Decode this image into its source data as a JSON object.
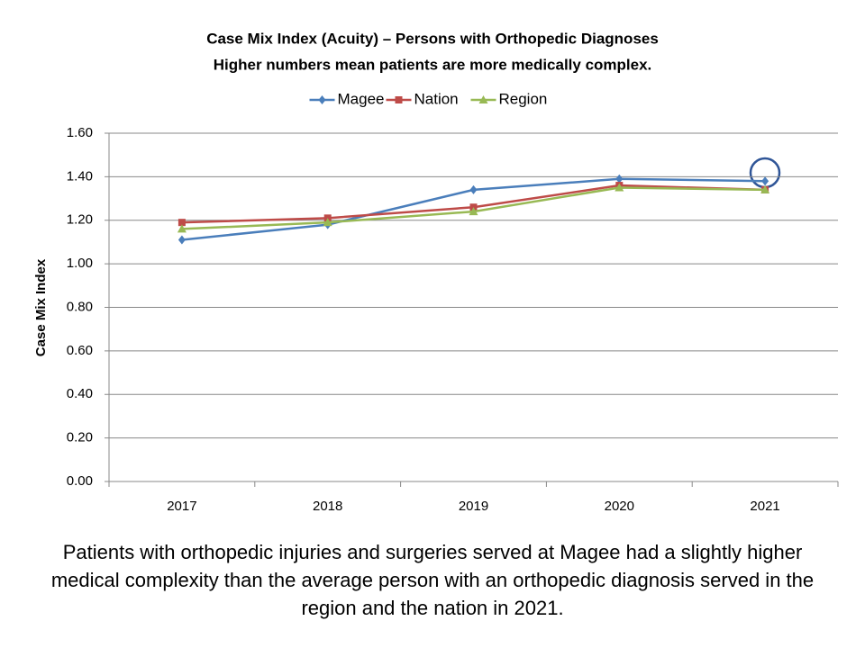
{
  "chart_data": {
    "type": "line",
    "title": "Case Mix Index (Acuity) – Persons with Orthopedic Diagnoses",
    "subtitle": "Higher numbers mean patients are more medically complex.",
    "y_label": "Case Mix Index",
    "categories": [
      "2017",
      "2018",
      "2019",
      "2020",
      "2021"
    ],
    "series": [
      {
        "name": "Magee",
        "color": "#4a7ebb",
        "values": [
          1.11,
          1.18,
          1.34,
          1.39,
          1.38
        ]
      },
      {
        "name": "Nation",
        "color": "#be4b48",
        "values": [
          1.19,
          1.21,
          1.26,
          1.36,
          1.34
        ]
      },
      {
        "name": "Region",
        "color": "#98b954",
        "values": [
          1.16,
          1.19,
          1.24,
          1.35,
          1.34
        ]
      }
    ],
    "ylim": [
      0,
      1.6
    ],
    "yticks": [
      {
        "value": 0,
        "label": "0.00"
      },
      {
        "value": 0.2,
        "label": "0.20"
      },
      {
        "value": 0.4,
        "label": "0.40"
      },
      {
        "value": 0.6,
        "label": "0.60"
      },
      {
        "value": 0.8,
        "label": "0.80"
      },
      {
        "value": 1,
        "label": "1.00"
      },
      {
        "value": 1.2,
        "label": "1.20"
      },
      {
        "value": 1.4,
        "label": "1.40"
      },
      {
        "value": 1.6,
        "label": "1.60"
      }
    ],
    "grid": true,
    "legend": "top",
    "caption": "Patients with orthopedic injuries and surgeries served at Magee had a slightly higher medical complexity than the average person with an orthopedic diagnosis served in the region and the nation in 2021."
  }
}
